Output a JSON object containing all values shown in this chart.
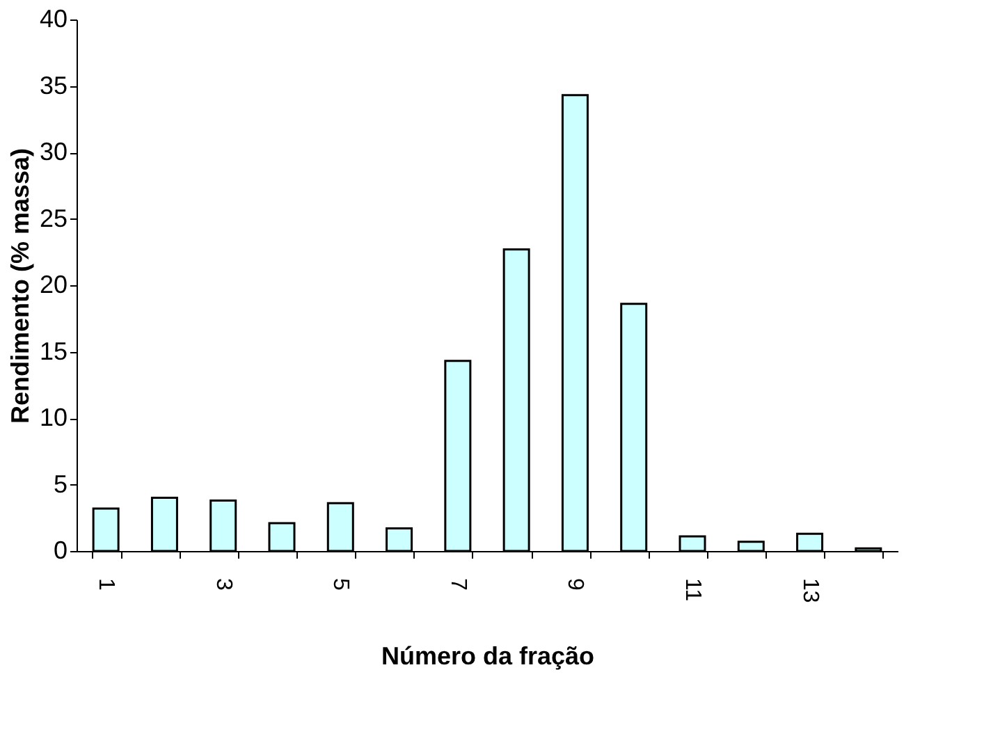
{
  "chart_data": {
    "type": "bar",
    "xlabel": "Número da fração",
    "ylabel": "Rendimento (% massa)",
    "categories": [
      "1",
      null,
      "3",
      null,
      "5",
      null,
      "7",
      null,
      "9",
      null,
      "11",
      null,
      "13",
      null
    ],
    "values": [
      3.2,
      4.0,
      3.8,
      2.1,
      3.6,
      1.7,
      14.3,
      22.7,
      34.3,
      18.6,
      1.1,
      0.7,
      1.3,
      0.2
    ],
    "color": "#ccffff",
    "ylim": [
      0,
      40
    ],
    "yticks": [
      0,
      5,
      10,
      15,
      20,
      25,
      30,
      35,
      40
    ],
    "grid": false
  }
}
